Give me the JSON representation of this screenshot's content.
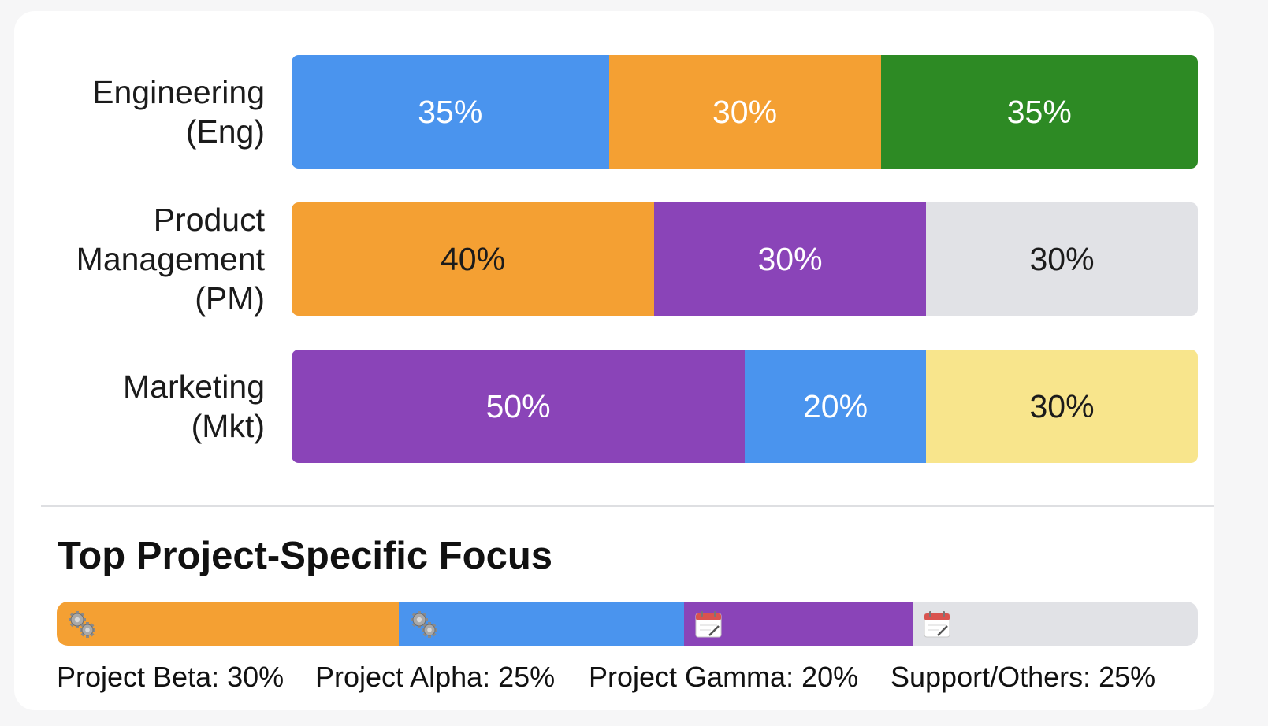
{
  "chart_data": [
    {
      "type": "bar",
      "orientation": "horizontal",
      "stacked": true,
      "categories": [
        "Engineering\n(Eng)",
        "Product\nManagement\n(PM)",
        "Marketing\n(Mkt)"
      ],
      "rows": [
        {
          "label": "Engineering\n(Eng)",
          "segments": [
            {
              "value": 35,
              "text": "35%",
              "color": "#4a94ee",
              "text_color": "#ffffff"
            },
            {
              "value": 30,
              "text": "30%",
              "color": "#f4a033",
              "text_color": "#ffffff"
            },
            {
              "value": 35,
              "text": "35%",
              "color": "#2d8a24",
              "text_color": "#ffffff"
            }
          ]
        },
        {
          "label": "Product\nManagement\n(PM)",
          "segments": [
            {
              "value": 40,
              "text": "40%",
              "color": "#f4a033",
              "text_color": "#1b1b1b"
            },
            {
              "value": 30,
              "text": "30%",
              "color": "#8a44b8",
              "text_color": "#ffffff"
            },
            {
              "value": 30,
              "text": "30%",
              "color": "#e1e2e6",
              "text_color": "#1b1b1b"
            }
          ]
        },
        {
          "label": "Marketing\n(Mkt)",
          "segments": [
            {
              "value": 50,
              "text": "50%",
              "color": "#8a44b8",
              "text_color": "#ffffff"
            },
            {
              "value": 20,
              "text": "20%",
              "color": "#4a94ee",
              "text_color": "#ffffff"
            },
            {
              "value": 30,
              "text": "30%",
              "color": "#f8e58c",
              "text_color": "#1b1b1b"
            }
          ]
        }
      ]
    },
    {
      "type": "bar",
      "orientation": "horizontal",
      "stacked": true,
      "title": "Top Project-Specific Focus",
      "segments": [
        {
          "name": "Project Beta",
          "value": 30,
          "label": "Project Beta: 30%",
          "color": "#f4a033",
          "icon": "gears-icon"
        },
        {
          "name": "Project Alpha",
          "value": 25,
          "label": "Project Alpha: 25%",
          "color": "#4a94ee",
          "icon": "gears-icon"
        },
        {
          "name": "Project Gamma",
          "value": 20,
          "label": "Project Gamma: 20%",
          "color": "#8a44b8",
          "icon": "calendar-icon"
        },
        {
          "name": "Support/Others",
          "value": 25,
          "label": "Support/Others: 25%",
          "color": "#e1e2e6",
          "icon": "calendar-icon"
        }
      ]
    }
  ]
}
